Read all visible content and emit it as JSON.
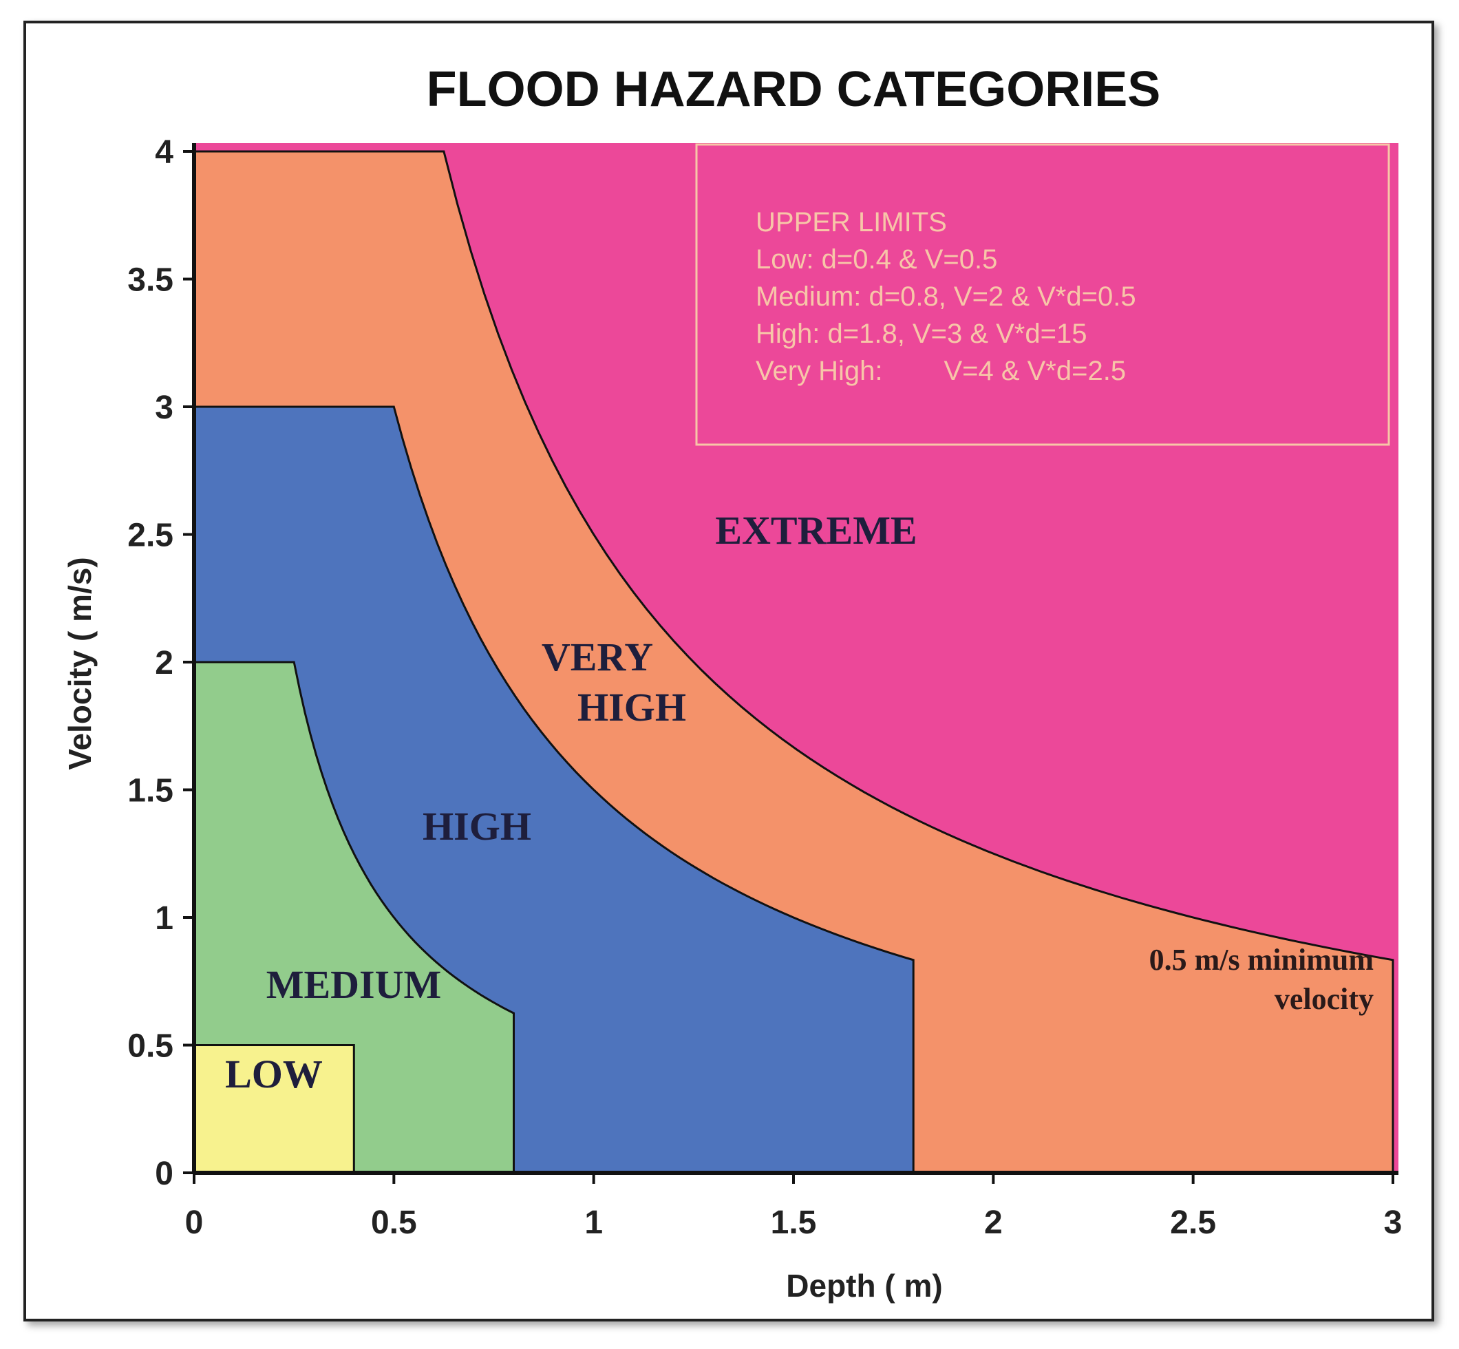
{
  "chart_data": {
    "type": "area",
    "title": "FLOOD HAZARD CATEGORIES",
    "xlabel": "Depth ( m)",
    "ylabel": "Velocity ( m/s)",
    "xlim": [
      0,
      3
    ],
    "ylim": [
      0,
      4
    ],
    "xticks": [
      "0",
      "0.5",
      "1",
      "1.5",
      "2",
      "2.5",
      "3"
    ],
    "yticks": [
      "0",
      "0.5",
      "1",
      "1.5",
      "2",
      "2.5",
      "3",
      "3.5",
      "4"
    ],
    "grid": false,
    "colors": {
      "extreme": "#ec4899",
      "very_high": "#f4926a",
      "high": "#4e74bd",
      "medium": "#92cc8c",
      "low": "#f7f28e",
      "limits_text": "#f7c6a8"
    },
    "zones": [
      {
        "name": "EXTREME"
      },
      {
        "name": "VERY HIGH"
      },
      {
        "name": "HIGH"
      },
      {
        "name": "MEDIUM"
      },
      {
        "name": "LOW"
      }
    ],
    "annotation": {
      "lines": [
        "0.5 m/s minimum",
        "velocity"
      ]
    },
    "upper_limits": {
      "heading": "UPPER LIMITS",
      "lines": [
        "Low: d=0.4 & V=0.5",
        "Medium: d=0.8, V=2 & V*d=0.5",
        "High: d=1.8, V=3 & V*d=15",
        "Very High:        V=4 & V*d=2.5"
      ]
    }
  }
}
